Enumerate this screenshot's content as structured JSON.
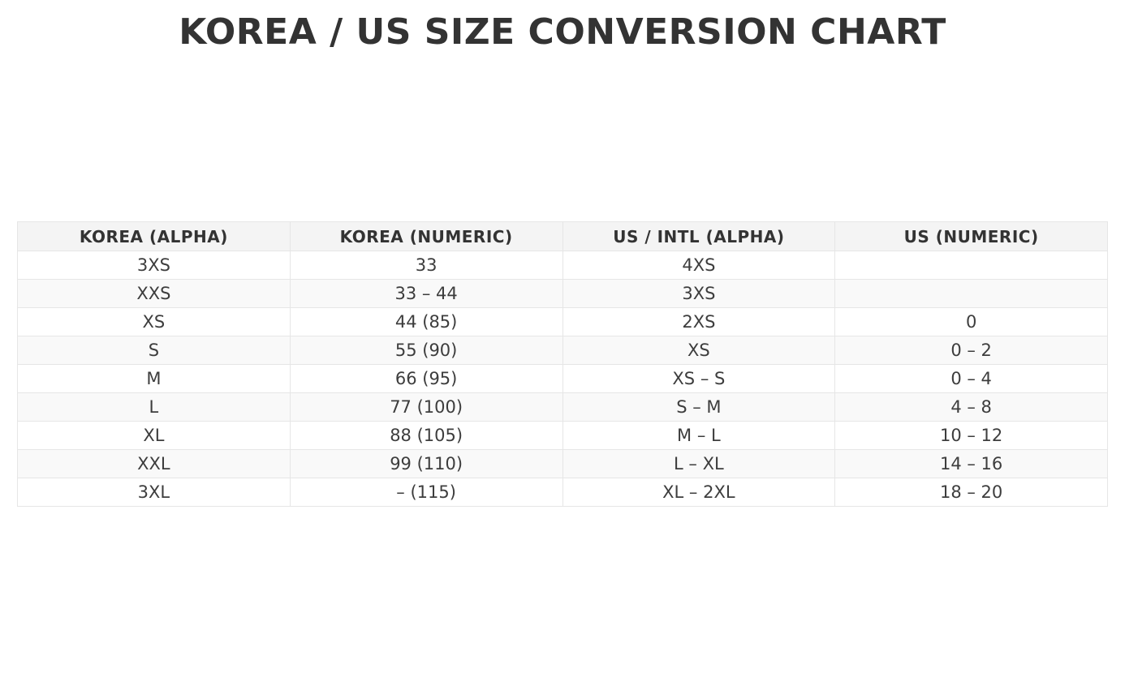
{
  "page": {
    "title": "KOREA / US SIZE CONVERSION CHART"
  },
  "colors": {
    "title_text": "#333333",
    "header_bg": "#f4f4f4",
    "header_text": "#333333",
    "row_bg": "#ffffff",
    "row_alt_bg": "#f9f9f9",
    "border": "#e6e6e6",
    "cell_text": "#3d3d3d",
    "page_bg": "#ffffff"
  },
  "chart_data": {
    "type": "table",
    "title": "KOREA / US SIZE CONVERSION CHART",
    "columns": [
      "KOREA (ALPHA)",
      "KOREA (NUMERIC)",
      "US / INTL (ALPHA)",
      "US (NUMERIC)"
    ],
    "rows": [
      [
        "3XS",
        "33",
        "4XS",
        ""
      ],
      [
        "XXS",
        "33 – 44",
        "3XS",
        ""
      ],
      [
        "XS",
        "44 (85)",
        "2XS",
        "0"
      ],
      [
        "S",
        "55 (90)",
        "XS",
        "0 – 2"
      ],
      [
        "M",
        "66 (95)",
        "XS – S",
        "0 – 4"
      ],
      [
        "L",
        "77 (100)",
        "S – M",
        "4 – 8"
      ],
      [
        "XL",
        "88 (105)",
        "M – L",
        "10 – 12"
      ],
      [
        "XXL",
        "99 (110)",
        "L – XL",
        "14 – 16"
      ],
      [
        "3XL",
        "– (115)",
        "XL – 2XL",
        "18 – 20"
      ]
    ]
  }
}
